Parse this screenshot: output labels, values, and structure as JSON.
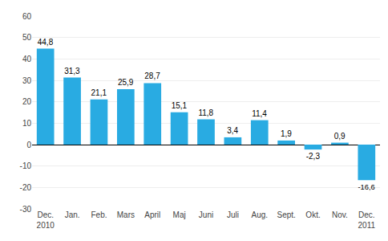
{
  "chart_data": {
    "type": "bar",
    "categories": [
      "Dec.\n2010",
      "Jan.",
      "Feb.",
      "Mars",
      "April",
      "Maj",
      "Juni",
      "Juli",
      "Aug.",
      "Sept.",
      "Okt.",
      "Nov.",
      "Dec.\n2011"
    ],
    "values": [
      44.8,
      31.3,
      21.1,
      25.9,
      28.7,
      15.1,
      11.8,
      3.4,
      11.4,
      1.9,
      -2.3,
      0.9,
      -16.6
    ],
    "value_labels": [
      "44,8",
      "31,3",
      "21,1",
      "25,9",
      "28,7",
      "15,1",
      "11,8",
      "3,4",
      "11,4",
      "1,9",
      "-2,3",
      "0,9",
      "-16,6"
    ],
    "data_labels": true,
    "color": "#29abe2",
    "ylim": [
      -30,
      60
    ],
    "yticks": [
      -30,
      -20,
      -10,
      0,
      10,
      20,
      30,
      40,
      50,
      60
    ],
    "grid": true
  }
}
